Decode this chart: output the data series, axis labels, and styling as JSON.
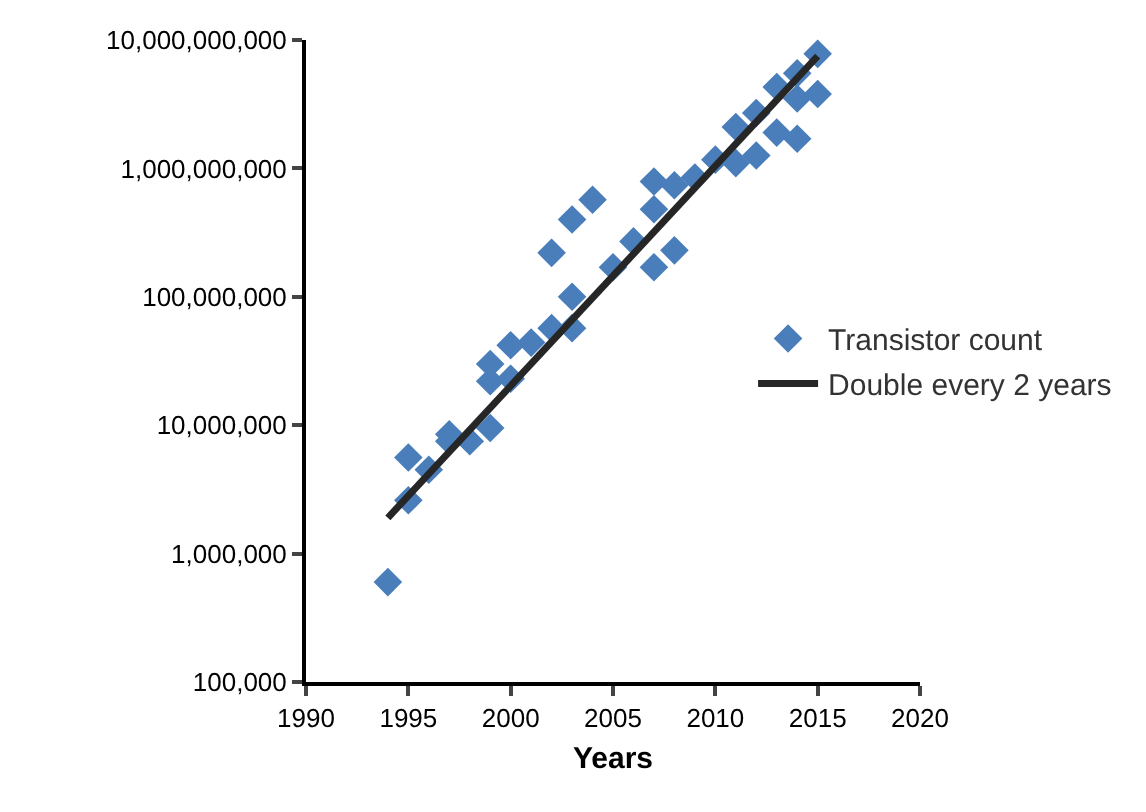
{
  "chart_data": {
    "type": "scatter",
    "xlabel": "Years",
    "log": "y",
    "grid": false,
    "legend": "right",
    "marker": "diamond",
    "xlim": [
      1990,
      2020
    ],
    "xticks": [
      1990,
      1995,
      2000,
      2005,
      2010,
      2015,
      2020
    ],
    "ylim": [
      100000,
      10000000000
    ],
    "yticks": [
      {
        "value": 100000,
        "label": "100,000"
      },
      {
        "value": 1000000,
        "label": "1,000,000"
      },
      {
        "value": 10000000,
        "label": "10,000,000"
      },
      {
        "value": 100000000,
        "label": "100,000,000"
      },
      {
        "value": 1000000000,
        "label": "1,000,000,000"
      },
      {
        "value": 10000000000,
        "label": "10,000,000,000"
      }
    ],
    "series": [
      {
        "name": "Transistor count",
        "color": "#4a7ebb",
        "x": [
          1994,
          1995,
          1995,
          1996,
          1997,
          1997,
          1998,
          1999,
          1999,
          1999,
          2000,
          2000,
          2001,
          2002,
          2002,
          2003,
          2003,
          2003,
          2004,
          2005,
          2006,
          2007,
          2007,
          2007,
          2008,
          2008,
          2009,
          2010,
          2011,
          2011,
          2012,
          2012,
          2013,
          2013,
          2014,
          2014,
          2014,
          2015,
          2015
        ],
        "values": [
          600000,
          2600000,
          5600000,
          4500000,
          8500000,
          7500000,
          7500000,
          9500000,
          22000000,
          30000000,
          23000000,
          42000000,
          44000000,
          57000000,
          220000000,
          57000000,
          100000000,
          400000000,
          570000000,
          170000000,
          270000000,
          170000000,
          480000000,
          790000000,
          230000000,
          740000000,
          850000000,
          1170000000,
          1100000000,
          2100000000,
          1260000000,
          2700000000,
          1900000000,
          4300000000,
          1700000000,
          3500000000,
          5500000000,
          3800000000,
          7800000000
        ]
      },
      {
        "name": "Double every 2 years",
        "type": "line",
        "color": "#262626",
        "line_style": "solid",
        "marker": "none",
        "x": [
          1994,
          2015
        ],
        "values": [
          1900000,
          7500000000
        ]
      }
    ]
  }
}
